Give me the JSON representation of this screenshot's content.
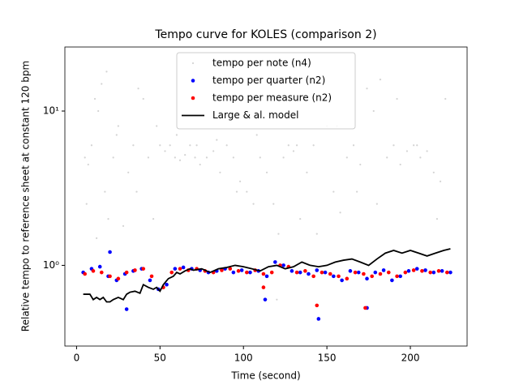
{
  "chart_data": {
    "type": "scatter",
    "title": "Tempo curve for KOLES (comparison 2)",
    "xlabel": "Time (second)",
    "ylabel": "Relative tempo to reference sheet at constant 120 bpm",
    "xlim": [
      -7,
      234
    ],
    "ylim": [
      0.3,
      26
    ],
    "yscale": "log",
    "xticks": [
      0,
      50,
      100,
      150,
      200
    ],
    "yticks": [
      {
        "value": 1,
        "label": "10⁰"
      },
      {
        "value": 10,
        "label": "10¹"
      }
    ],
    "legend": "upper center",
    "series": [
      {
        "name": "tempo per note (n4)",
        "color": "#d3d3d3",
        "kind": "scatter",
        "size": 1.1,
        "x": [
          5,
          7,
          9,
          11,
          13,
          15,
          17,
          19,
          22,
          25,
          28,
          31,
          34,
          37,
          40,
          43,
          46,
          50,
          53,
          56,
          59,
          62,
          65,
          68,
          71,
          74,
          78,
          82,
          86,
          90,
          94,
          98,
          102,
          106,
          110,
          114,
          118,
          121,
          124,
          127,
          130,
          134,
          138,
          142,
          146,
          150,
          154,
          158,
          162,
          166,
          170,
          174,
          178,
          182,
          186,
          190,
          194,
          198,
          202,
          206,
          210,
          214,
          218,
          221,
          6,
          12,
          18,
          24,
          36,
          48,
          60,
          72,
          84,
          96,
          108,
          120,
          132,
          144,
          156,
          168,
          180,
          192,
          204,
          216
        ],
        "values": [
          5,
          4.5,
          6,
          12,
          10,
          15,
          3,
          2,
          5,
          8,
          1.8,
          4,
          6,
          14,
          12,
          5,
          2,
          6,
          5.5,
          6,
          5,
          4.8,
          5.2,
          6,
          5,
          4.5,
          5,
          5.5,
          4,
          6,
          5,
          3.5,
          3,
          2.5,
          5,
          4,
          2.5,
          1.6,
          5,
          6,
          5.5,
          2,
          4,
          6,
          12,
          8,
          3,
          2.2,
          5,
          6,
          4.5,
          14,
          10,
          16,
          5,
          6,
          4.5,
          5.5,
          6,
          5,
          5.5,
          4,
          3.5,
          12,
          2.5,
          1.5,
          18,
          7,
          3,
          8,
          7,
          6,
          6.5,
          3,
          7,
          0.6,
          6,
          1.6,
          8,
          3,
          2.5,
          12,
          6,
          2
        ]
      },
      {
        "name": "tempo per quarter (n2)",
        "color": "#0000ff",
        "kind": "scatter",
        "size": 2.3,
        "x": [
          4,
          9,
          14,
          19,
          24,
          29,
          34,
          39,
          44,
          49,
          54,
          59,
          64,
          69,
          74,
          79,
          84,
          89,
          94,
          99,
          104,
          109,
          114,
          119,
          124,
          129,
          134,
          139,
          144,
          149,
          154,
          159,
          164,
          169,
          174,
          179,
          184,
          189,
          194,
          199,
          204,
          209,
          214,
          219,
          224,
          20,
          30,
          113,
          145,
          174
        ],
        "values": [
          0.9,
          0.95,
          0.98,
          0.85,
          0.8,
          0.88,
          0.92,
          0.95,
          0.8,
          0.7,
          0.75,
          0.95,
          0.97,
          0.95,
          0.93,
          0.9,
          0.92,
          0.95,
          0.9,
          0.93,
          0.9,
          0.92,
          0.85,
          1.05,
          1.0,
          0.92,
          0.9,
          0.88,
          0.93,
          0.9,
          0.85,
          0.8,
          0.92,
          0.9,
          0.82,
          0.9,
          0.93,
          0.8,
          0.85,
          0.92,
          0.95,
          0.93,
          0.9,
          0.92,
          0.9,
          1.22,
          0.52,
          0.6,
          0.45,
          0.53
        ]
      },
      {
        "name": "tempo per measure (n2)",
        "color": "#ff0000",
        "kind": "scatter",
        "size": 2.3,
        "x": [
          5,
          10,
          15,
          20,
          25,
          30,
          35,
          40,
          45,
          52,
          57,
          62,
          67,
          72,
          77,
          82,
          87,
          92,
          97,
          102,
          107,
          112,
          117,
          122,
          127,
          132,
          137,
          142,
          147,
          152,
          157,
          162,
          167,
          172,
          177,
          182,
          187,
          192,
          197,
          202,
          207,
          212,
          217,
          222,
          112,
          144,
          173
        ],
        "values": [
          0.88,
          0.92,
          0.9,
          0.85,
          0.82,
          0.9,
          0.93,
          0.95,
          0.85,
          0.72,
          0.9,
          0.95,
          0.93,
          0.95,
          0.92,
          0.9,
          0.93,
          0.95,
          0.92,
          0.9,
          0.93,
          0.88,
          0.9,
          1.0,
          0.98,
          0.9,
          0.92,
          0.85,
          0.9,
          0.88,
          0.85,
          0.82,
          0.9,
          0.88,
          0.85,
          0.88,
          0.9,
          0.85,
          0.9,
          0.93,
          0.92,
          0.9,
          0.92,
          0.9,
          0.72,
          0.55,
          0.53
        ]
      },
      {
        "name": "Large & al. model",
        "color": "#000000",
        "kind": "line",
        "x": [
          4,
          8,
          10,
          12,
          14,
          16,
          18,
          20,
          22,
          25,
          28,
          30,
          32,
          35,
          38,
          40,
          43,
          46,
          48,
          50,
          52,
          55,
          58,
          60,
          62,
          65,
          68,
          70,
          75,
          80,
          85,
          90,
          95,
          100,
          105,
          110,
          115,
          120,
          125,
          130,
          135,
          140,
          145,
          150,
          155,
          160,
          165,
          170,
          175,
          180,
          185,
          190,
          195,
          200,
          205,
          210,
          215,
          220,
          224
        ],
        "values": [
          0.65,
          0.65,
          0.6,
          0.62,
          0.6,
          0.62,
          0.58,
          0.58,
          0.6,
          0.62,
          0.6,
          0.65,
          0.67,
          0.68,
          0.66,
          0.75,
          0.72,
          0.7,
          0.72,
          0.68,
          0.75,
          0.82,
          0.85,
          0.9,
          0.88,
          0.92,
          0.95,
          0.93,
          0.95,
          0.9,
          0.95,
          0.97,
          1.0,
          0.98,
          0.95,
          0.92,
          0.98,
          1.0,
          0.95,
          0.98,
          1.05,
          1.0,
          0.98,
          1.0,
          1.05,
          1.08,
          1.1,
          1.05,
          1.0,
          1.1,
          1.2,
          1.25,
          1.2,
          1.25,
          1.2,
          1.15,
          1.2,
          1.25,
          1.28
        ]
      }
    ]
  }
}
